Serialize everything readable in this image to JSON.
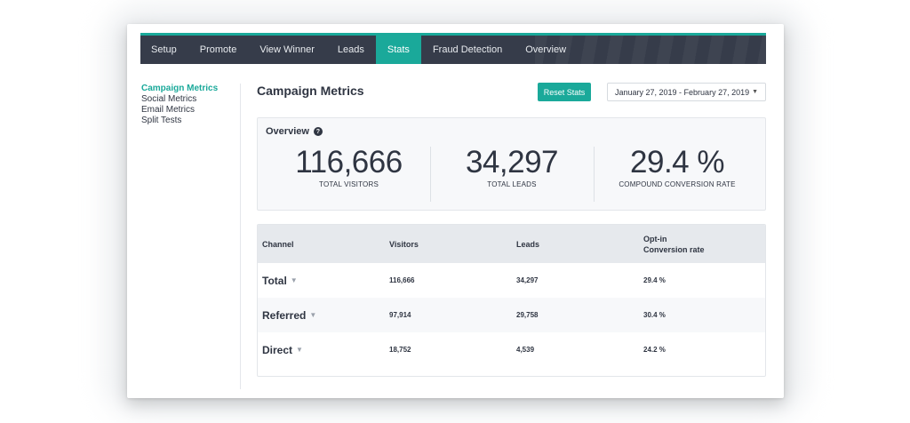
{
  "topnav": {
    "tabs": [
      "Setup",
      "Promote",
      "View Winner",
      "Leads",
      "Stats",
      "Fraud Detection",
      "Overview"
    ],
    "active_index": 4
  },
  "sidebar": {
    "items": [
      "Campaign Metrics",
      "Social Metrics",
      "Email Metrics",
      "Split Tests"
    ],
    "active_index": 0
  },
  "header": {
    "title": "Campaign Metrics",
    "reset_label": "Reset Stats",
    "date_range": "January 27, 2019 - February 27, 2019"
  },
  "overview": {
    "title": "Overview",
    "help_glyph": "?",
    "stats": [
      {
        "value": "116,666",
        "label": "TOTAL VISITORS"
      },
      {
        "value": "34,297",
        "label": "TOTAL LEADS"
      },
      {
        "value": "29.4 %",
        "label": "COMPOUND CONVERSION RATE"
      }
    ]
  },
  "table": {
    "headers": [
      "Channel",
      "Visitors",
      "Leads",
      "Opt-in\nConversion rate"
    ],
    "rows": [
      {
        "channel": "Total",
        "visitors": "116,666",
        "leads": "34,297",
        "rate": "29.4 %"
      },
      {
        "channel": "Referred",
        "visitors": "97,914",
        "leads": "29,758",
        "rate": "30.4 %"
      },
      {
        "channel": "Direct",
        "visitors": "18,752",
        "leads": "4,539",
        "rate": "24.2 %"
      }
    ]
  },
  "colors": {
    "accent": "#1aa99a",
    "nav_bg": "#363c4a",
    "text": "#2f3542"
  }
}
